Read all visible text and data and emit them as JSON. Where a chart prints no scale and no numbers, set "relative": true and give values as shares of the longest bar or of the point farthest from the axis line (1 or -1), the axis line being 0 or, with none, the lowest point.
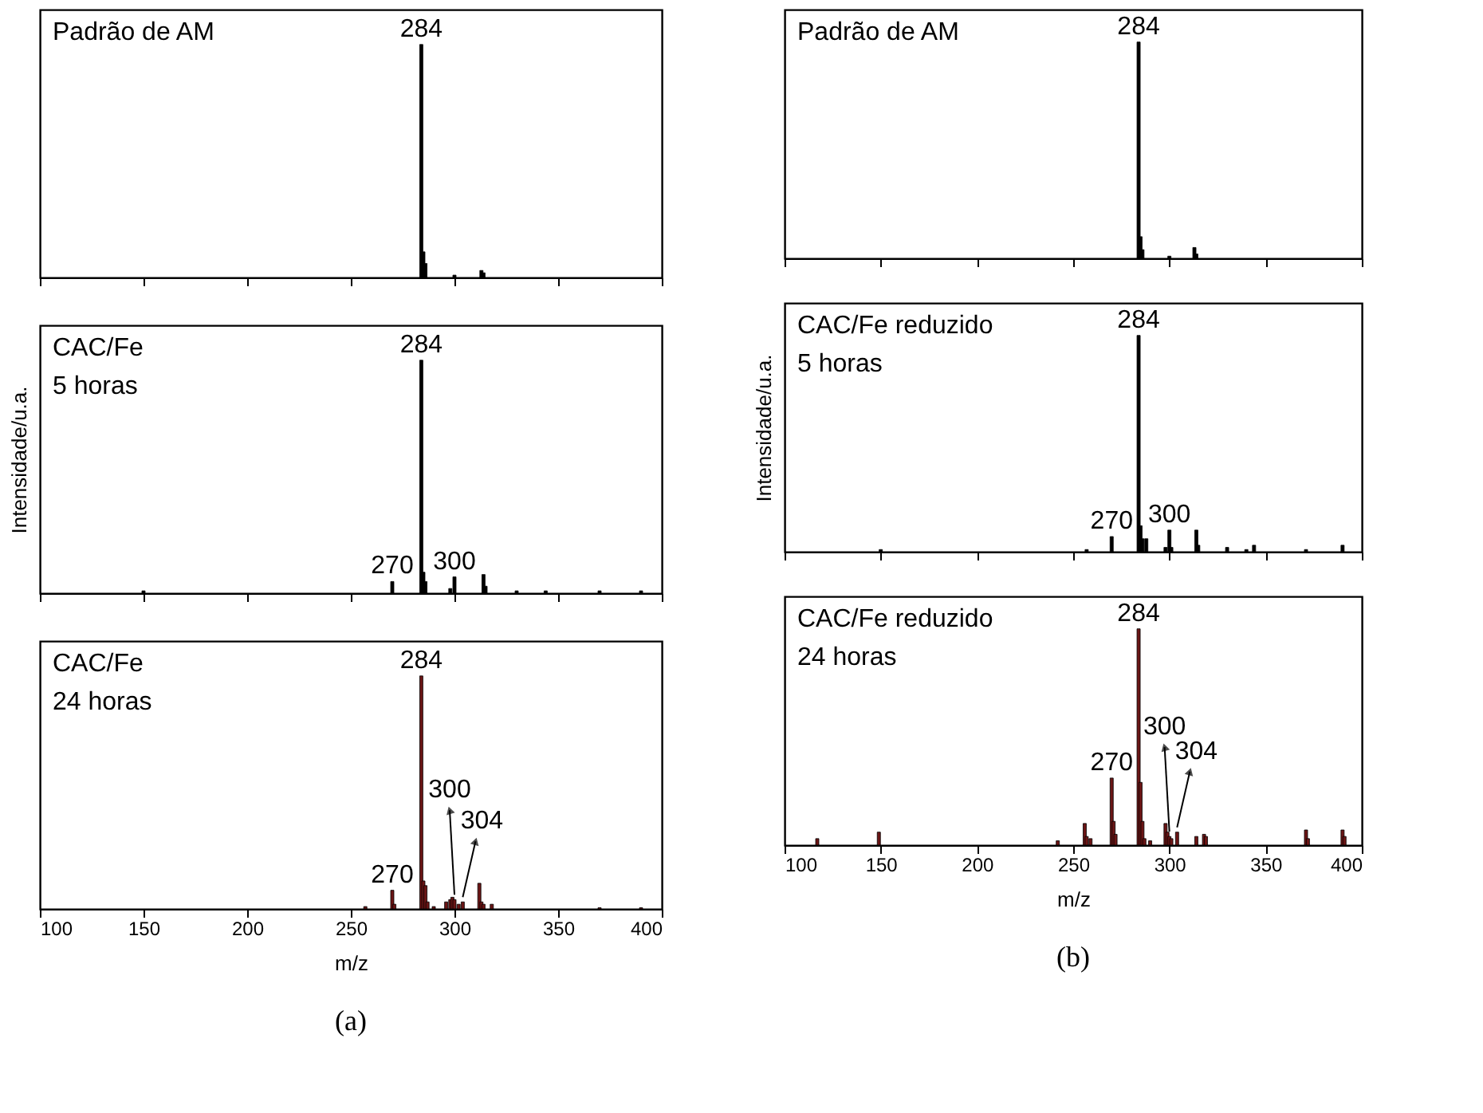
{
  "chart_data": [
    {
      "type": "bar",
      "title": "Padrão de AM",
      "relative": true,
      "color": "#000000",
      "xlim": [
        100,
        400
      ],
      "xticks": [
        100,
        150,
        200,
        250,
        300,
        350,
        400
      ],
      "tick_labels": false,
      "x": [
        284,
        285,
        286,
        300,
        313,
        314
      ],
      "values": [
        1,
        0.11,
        0.06,
        0.01,
        0.03,
        0.02
      ],
      "annotations": [
        {
          "text": "284",
          "x": 284,
          "y": 1
        }
      ]
    },
    {
      "type": "bar",
      "title": "CAC/Fe",
      "subtitle": "5 horas",
      "ylabel": "Intensidade/u.a.",
      "relative": true,
      "color": "#000000",
      "xlim": [
        100,
        400
      ],
      "xticks": [
        100,
        150,
        200,
        250,
        300,
        350,
        400
      ],
      "tick_labels": false,
      "x": [
        150,
        270,
        284,
        285,
        286,
        298,
        300,
        314,
        315,
        330,
        344,
        370,
        390
      ],
      "values": [
        0.01,
        0.05,
        1,
        0.09,
        0.05,
        0.02,
        0.07,
        0.08,
        0.03,
        0.01,
        0.01,
        0.01,
        0.01
      ],
      "annotations": [
        {
          "text": "284",
          "x": 284,
          "y": 1
        },
        {
          "text": "270",
          "x": 270,
          "y": 0.05
        },
        {
          "text": "300",
          "x": 300,
          "y": 0.07
        }
      ]
    },
    {
      "type": "bar",
      "title": "CAC/Fe",
      "subtitle": "24 horas",
      "xlabel": "m/z",
      "relative": true,
      "color": "#6b1515",
      "xlim": [
        100,
        400
      ],
      "xticks": [
        100,
        150,
        200,
        250,
        300,
        350,
        400
      ],
      "tick_labels": "x",
      "x": [
        257,
        270,
        271,
        284,
        285,
        286,
        287,
        290,
        296,
        298,
        299,
        300,
        302,
        304,
        312,
        313,
        314,
        318,
        370,
        390
      ],
      "values": [
        0.01,
        0.08,
        0.02,
        1,
        0.12,
        0.1,
        0.03,
        0.01,
        0.03,
        0.04,
        0.05,
        0.04,
        0.02,
        0.03,
        0.11,
        0.03,
        0.02,
        0.02,
        0.005,
        0.005
      ],
      "annotations": [
        {
          "text": "284",
          "x": 284,
          "y": 1
        },
        {
          "text": "270",
          "x": 270,
          "y": 0.08
        },
        {
          "text": "300",
          "x": 300,
          "y": 0.04
        },
        {
          "text": "304",
          "x": 304,
          "y": 0.03
        },
        "(a)"
      ]
    },
    {
      "type": "bar",
      "title": "Padrão de AM",
      "relative": true,
      "color": "#000000",
      "xlim": [
        100,
        400
      ],
      "xticks": [
        100,
        150,
        200,
        250,
        300,
        350,
        400
      ],
      "tick_labels": false,
      "x": [
        284,
        285,
        286,
        300,
        313,
        314
      ],
      "values": [
        1,
        0.1,
        0.04,
        0.01,
        0.05,
        0.02
      ],
      "annotations": [
        {
          "text": "284",
          "x": 284,
          "y": 1
        }
      ]
    },
    {
      "type": "bar",
      "title": "CAC/Fe reduzido",
      "subtitle": "5 horas",
      "ylabel": "Intensidade/u.a.",
      "relative": true,
      "color": "#000000",
      "xlim": [
        100,
        400
      ],
      "xticks": [
        100,
        150,
        200,
        250,
        300,
        350,
        400
      ],
      "tick_labels": false,
      "x": [
        150,
        257,
        270,
        284,
        285,
        286,
        288,
        298,
        300,
        301,
        314,
        315,
        330,
        340,
        344,
        371,
        390
      ],
      "values": [
        0.01,
        0.01,
        0.07,
        1,
        0.12,
        0.06,
        0.06,
        0.02,
        0.1,
        0.02,
        0.1,
        0.03,
        0.02,
        0.01,
        0.03,
        0.01,
        0.03
      ],
      "annotations": [
        {
          "text": "284",
          "x": 284,
          "y": 1
        },
        {
          "text": "270",
          "x": 270,
          "y": 0.07
        },
        {
          "text": "300",
          "x": 300,
          "y": 0.1
        }
      ]
    },
    {
      "type": "bar",
      "title": "CAC/Fe reduzido",
      "subtitle": "24 horas",
      "xlabel": "m/z",
      "relative": true,
      "color": "#6b1515",
      "xlim": [
        100,
        400
      ],
      "xticks": [
        100,
        150,
        200,
        250,
        300,
        350,
        400
      ],
      "tick_labels": "x",
      "x": [
        117,
        149,
        242,
        256,
        257,
        259,
        270,
        271,
        272,
        284,
        285,
        286,
        287,
        290,
        298,
        299,
        300,
        301,
        304,
        314,
        318,
        319,
        371,
        372,
        390,
        391
      ],
      "values": [
        0.03,
        0.06,
        0.02,
        0.1,
        0.04,
        0.03,
        0.31,
        0.11,
        0.05,
        1,
        0.29,
        0.11,
        0.03,
        0.02,
        0.1,
        0.06,
        0.04,
        0.03,
        0.06,
        0.04,
        0.05,
        0.04,
        0.07,
        0.03,
        0.07,
        0.04
      ],
      "annotations": [
        {
          "text": "284",
          "x": 284,
          "y": 1
        },
        {
          "text": "270",
          "x": 270,
          "y": 0.31
        },
        {
          "text": "300",
          "x": 300,
          "y": 0.04
        },
        {
          "text": "304",
          "x": 304,
          "y": 0.06
        },
        "(b)"
      ]
    }
  ]
}
